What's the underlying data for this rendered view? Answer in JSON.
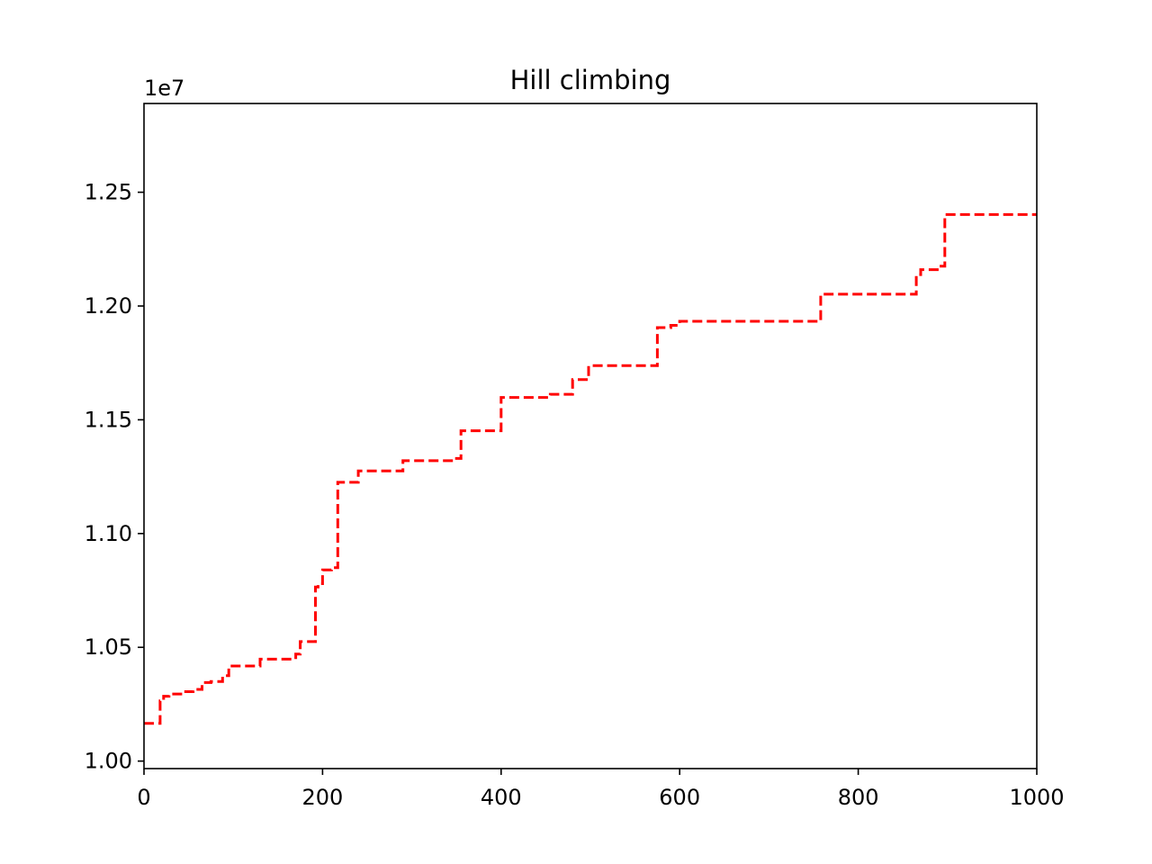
{
  "chart_data": {
    "type": "line",
    "title": "Hill climbing",
    "xlabel": "",
    "ylabel": "",
    "xlim": [
      0,
      1000
    ],
    "ylim": [
      9967000,
      12890000
    ],
    "x_ticks": [
      0,
      200,
      400,
      600,
      800,
      1000
    ],
    "y_ticks": [
      10000000,
      10500000,
      11000000,
      11500000,
      12000000,
      12500000
    ],
    "x_tick_labels": [
      "0",
      "200",
      "400",
      "600",
      "800",
      "1000"
    ],
    "y_tick_labels": [
      "1.00",
      "1.05",
      "1.10",
      "1.15",
      "1.20",
      "1.25"
    ],
    "y_offset_label": "1e7",
    "grid": false,
    "legend": "none",
    "series": [
      {
        "color": "#ff0000",
        "linestyle": "dashed",
        "step": true,
        "x": [
          0,
          18,
          22,
          28,
          45,
          55,
          65,
          75,
          88,
          95,
          130,
          170,
          175,
          192,
          195,
          200,
          210,
          217,
          240,
          290,
          350,
          355,
          400,
          455,
          480,
          498,
          575,
          590,
          600,
          758,
          865,
          870,
          890,
          897,
          1000
        ],
        "y": [
          10166000,
          10265000,
          10285000,
          10295000,
          10305000,
          10315000,
          10345000,
          10350000,
          10375000,
          10418000,
          10448000,
          10470000,
          10525000,
          10765000,
          10780000,
          10840000,
          10850000,
          11225000,
          11275000,
          11320000,
          11330000,
          11452000,
          11598000,
          11612000,
          11677000,
          11738000,
          11905000,
          11915000,
          11933000,
          12052000,
          12138000,
          12160000,
          12175000,
          12402000,
          12402000
        ]
      }
    ]
  }
}
